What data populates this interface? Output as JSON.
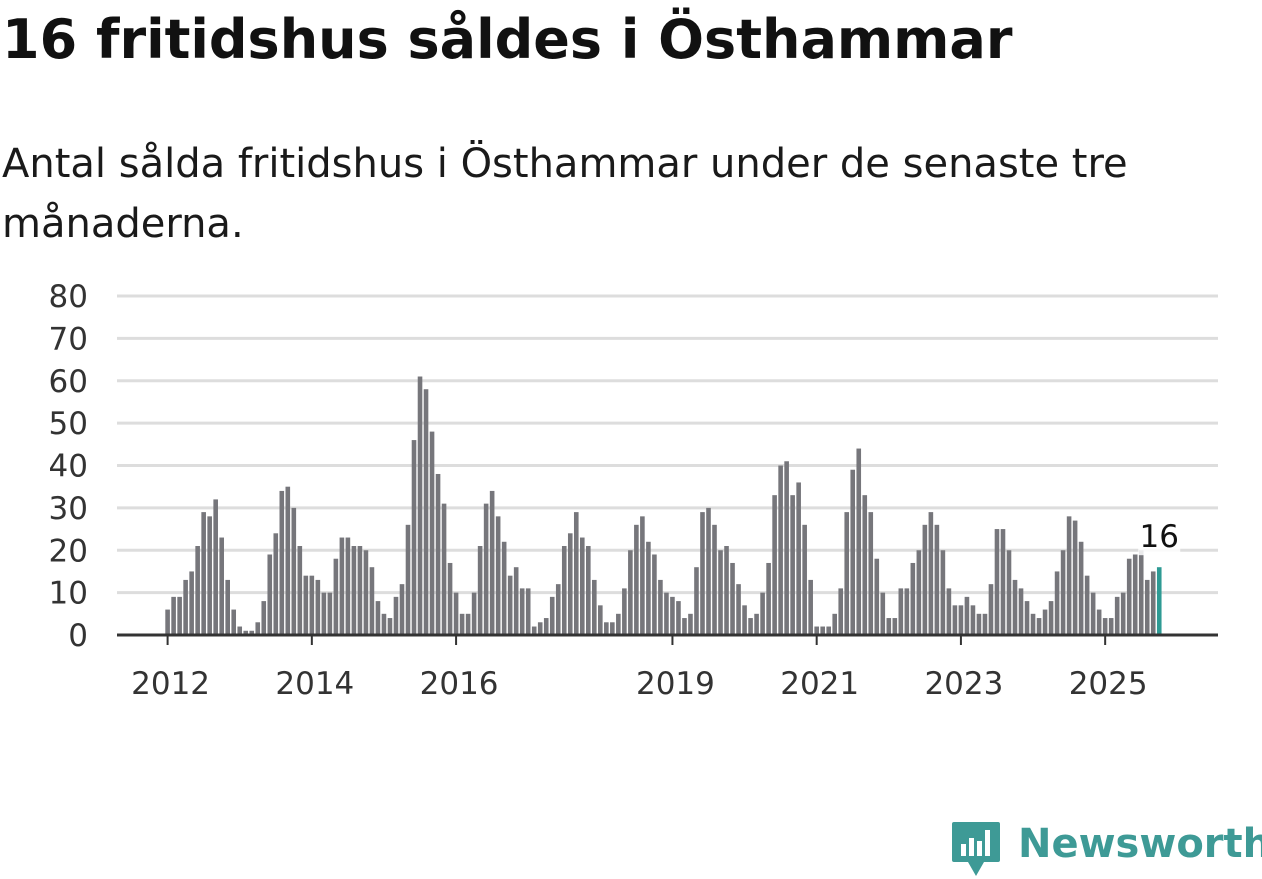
{
  "title": "16 fritidshus såldes i Östhammar",
  "subtitle": "Antal sålda fritidshus i Östhammar under de senaste tre månaderna.",
  "brand": {
    "name": "Newsworthy",
    "icon": "newsworthy-logo-icon",
    "color": "#3e9a96"
  },
  "colors": {
    "bar": "#76767b",
    "highlight": "#2e9a94",
    "grid": "#dddddd",
    "axis": "#333333",
    "text": "#333333"
  },
  "chart_data": {
    "type": "bar",
    "title": "16 fritidshus såldes i Östhammar",
    "xlabel": "",
    "ylabel": "",
    "ylim": [
      0,
      80
    ],
    "yticks": [
      0,
      10,
      20,
      30,
      40,
      50,
      60,
      70,
      80
    ],
    "xtick_labels": [
      "2012",
      "2014",
      "2016",
      "2019",
      "2021",
      "2023",
      "2025"
    ],
    "start": "2012-01",
    "values": [
      6,
      9,
      9,
      13,
      15,
      21,
      29,
      28,
      32,
      23,
      13,
      6,
      2,
      1,
      1,
      3,
      8,
      19,
      24,
      34,
      35,
      30,
      21,
      14,
      14,
      13,
      10,
      10,
      18,
      23,
      23,
      21,
      21,
      20,
      16,
      8,
      5,
      4,
      9,
      12,
      26,
      46,
      61,
      58,
      48,
      38,
      31,
      17,
      10,
      5,
      5,
      10,
      21,
      31,
      34,
      28,
      22,
      14,
      16,
      11,
      11,
      2,
      3,
      4,
      9,
      12,
      21,
      24,
      29,
      23,
      21,
      13,
      7,
      3,
      3,
      5,
      11,
      20,
      26,
      28,
      22,
      19,
      13,
      10,
      9,
      8,
      4,
      5,
      16,
      29,
      30,
      26,
      20,
      21,
      17,
      12,
      7,
      4,
      5,
      10,
      17,
      33,
      40,
      41,
      33,
      36,
      26,
      13,
      2,
      2,
      2,
      5,
      11,
      29,
      39,
      44,
      33,
      29,
      18,
      10,
      4,
      4,
      11,
      11,
      17,
      20,
      26,
      29,
      26,
      20,
      11,
      7,
      7,
      9,
      7,
      5,
      5,
      12,
      25,
      25,
      20,
      13,
      11,
      8,
      5,
      4,
      6,
      8,
      15,
      20,
      28,
      27,
      22,
      14,
      10,
      6,
      4,
      4,
      9,
      10,
      18,
      19,
      20,
      13,
      15,
      16
    ],
    "highlight": {
      "label": "16",
      "value": 16,
      "index": 165
    }
  }
}
